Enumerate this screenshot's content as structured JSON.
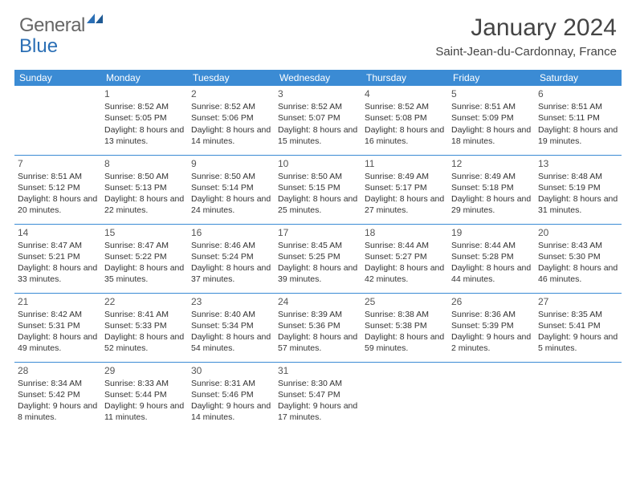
{
  "brand": {
    "part1": "General",
    "part2": "Blue"
  },
  "title": "January 2024",
  "location": "Saint-Jean-du-Cardonnay, France",
  "header_bg": "#3b8bd4",
  "header_fg": "#ffffff",
  "divider_color": "#3b8bd4",
  "text_color": "#333333",
  "day_headers": [
    "Sunday",
    "Monday",
    "Tuesday",
    "Wednesday",
    "Thursday",
    "Friday",
    "Saturday"
  ],
  "weeks": [
    [
      null,
      {
        "n": "1",
        "sr": "8:52 AM",
        "ss": "5:05 PM",
        "dl": "8 hours and 13 minutes."
      },
      {
        "n": "2",
        "sr": "8:52 AM",
        "ss": "5:06 PM",
        "dl": "8 hours and 14 minutes."
      },
      {
        "n": "3",
        "sr": "8:52 AM",
        "ss": "5:07 PM",
        "dl": "8 hours and 15 minutes."
      },
      {
        "n": "4",
        "sr": "8:52 AM",
        "ss": "5:08 PM",
        "dl": "8 hours and 16 minutes."
      },
      {
        "n": "5",
        "sr": "8:51 AM",
        "ss": "5:09 PM",
        "dl": "8 hours and 18 minutes."
      },
      {
        "n": "6",
        "sr": "8:51 AM",
        "ss": "5:11 PM",
        "dl": "8 hours and 19 minutes."
      }
    ],
    [
      {
        "n": "7",
        "sr": "8:51 AM",
        "ss": "5:12 PM",
        "dl": "8 hours and 20 minutes."
      },
      {
        "n": "8",
        "sr": "8:50 AM",
        "ss": "5:13 PM",
        "dl": "8 hours and 22 minutes."
      },
      {
        "n": "9",
        "sr": "8:50 AM",
        "ss": "5:14 PM",
        "dl": "8 hours and 24 minutes."
      },
      {
        "n": "10",
        "sr": "8:50 AM",
        "ss": "5:15 PM",
        "dl": "8 hours and 25 minutes."
      },
      {
        "n": "11",
        "sr": "8:49 AM",
        "ss": "5:17 PM",
        "dl": "8 hours and 27 minutes."
      },
      {
        "n": "12",
        "sr": "8:49 AM",
        "ss": "5:18 PM",
        "dl": "8 hours and 29 minutes."
      },
      {
        "n": "13",
        "sr": "8:48 AM",
        "ss": "5:19 PM",
        "dl": "8 hours and 31 minutes."
      }
    ],
    [
      {
        "n": "14",
        "sr": "8:47 AM",
        "ss": "5:21 PM",
        "dl": "8 hours and 33 minutes."
      },
      {
        "n": "15",
        "sr": "8:47 AM",
        "ss": "5:22 PM",
        "dl": "8 hours and 35 minutes."
      },
      {
        "n": "16",
        "sr": "8:46 AM",
        "ss": "5:24 PM",
        "dl": "8 hours and 37 minutes."
      },
      {
        "n": "17",
        "sr": "8:45 AM",
        "ss": "5:25 PM",
        "dl": "8 hours and 39 minutes."
      },
      {
        "n": "18",
        "sr": "8:44 AM",
        "ss": "5:27 PM",
        "dl": "8 hours and 42 minutes."
      },
      {
        "n": "19",
        "sr": "8:44 AM",
        "ss": "5:28 PM",
        "dl": "8 hours and 44 minutes."
      },
      {
        "n": "20",
        "sr": "8:43 AM",
        "ss": "5:30 PM",
        "dl": "8 hours and 46 minutes."
      }
    ],
    [
      {
        "n": "21",
        "sr": "8:42 AM",
        "ss": "5:31 PM",
        "dl": "8 hours and 49 minutes."
      },
      {
        "n": "22",
        "sr": "8:41 AM",
        "ss": "5:33 PM",
        "dl": "8 hours and 52 minutes."
      },
      {
        "n": "23",
        "sr": "8:40 AM",
        "ss": "5:34 PM",
        "dl": "8 hours and 54 minutes."
      },
      {
        "n": "24",
        "sr": "8:39 AM",
        "ss": "5:36 PM",
        "dl": "8 hours and 57 minutes."
      },
      {
        "n": "25",
        "sr": "8:38 AM",
        "ss": "5:38 PM",
        "dl": "8 hours and 59 minutes."
      },
      {
        "n": "26",
        "sr": "8:36 AM",
        "ss": "5:39 PM",
        "dl": "9 hours and 2 minutes."
      },
      {
        "n": "27",
        "sr": "8:35 AM",
        "ss": "5:41 PM",
        "dl": "9 hours and 5 minutes."
      }
    ],
    [
      {
        "n": "28",
        "sr": "8:34 AM",
        "ss": "5:42 PM",
        "dl": "9 hours and 8 minutes."
      },
      {
        "n": "29",
        "sr": "8:33 AM",
        "ss": "5:44 PM",
        "dl": "9 hours and 11 minutes."
      },
      {
        "n": "30",
        "sr": "8:31 AM",
        "ss": "5:46 PM",
        "dl": "9 hours and 14 minutes."
      },
      {
        "n": "31",
        "sr": "8:30 AM",
        "ss": "5:47 PM",
        "dl": "9 hours and 17 minutes."
      },
      null,
      null,
      null
    ]
  ],
  "labels": {
    "sunrise": "Sunrise:",
    "sunset": "Sunset:",
    "daylight": "Daylight:"
  }
}
